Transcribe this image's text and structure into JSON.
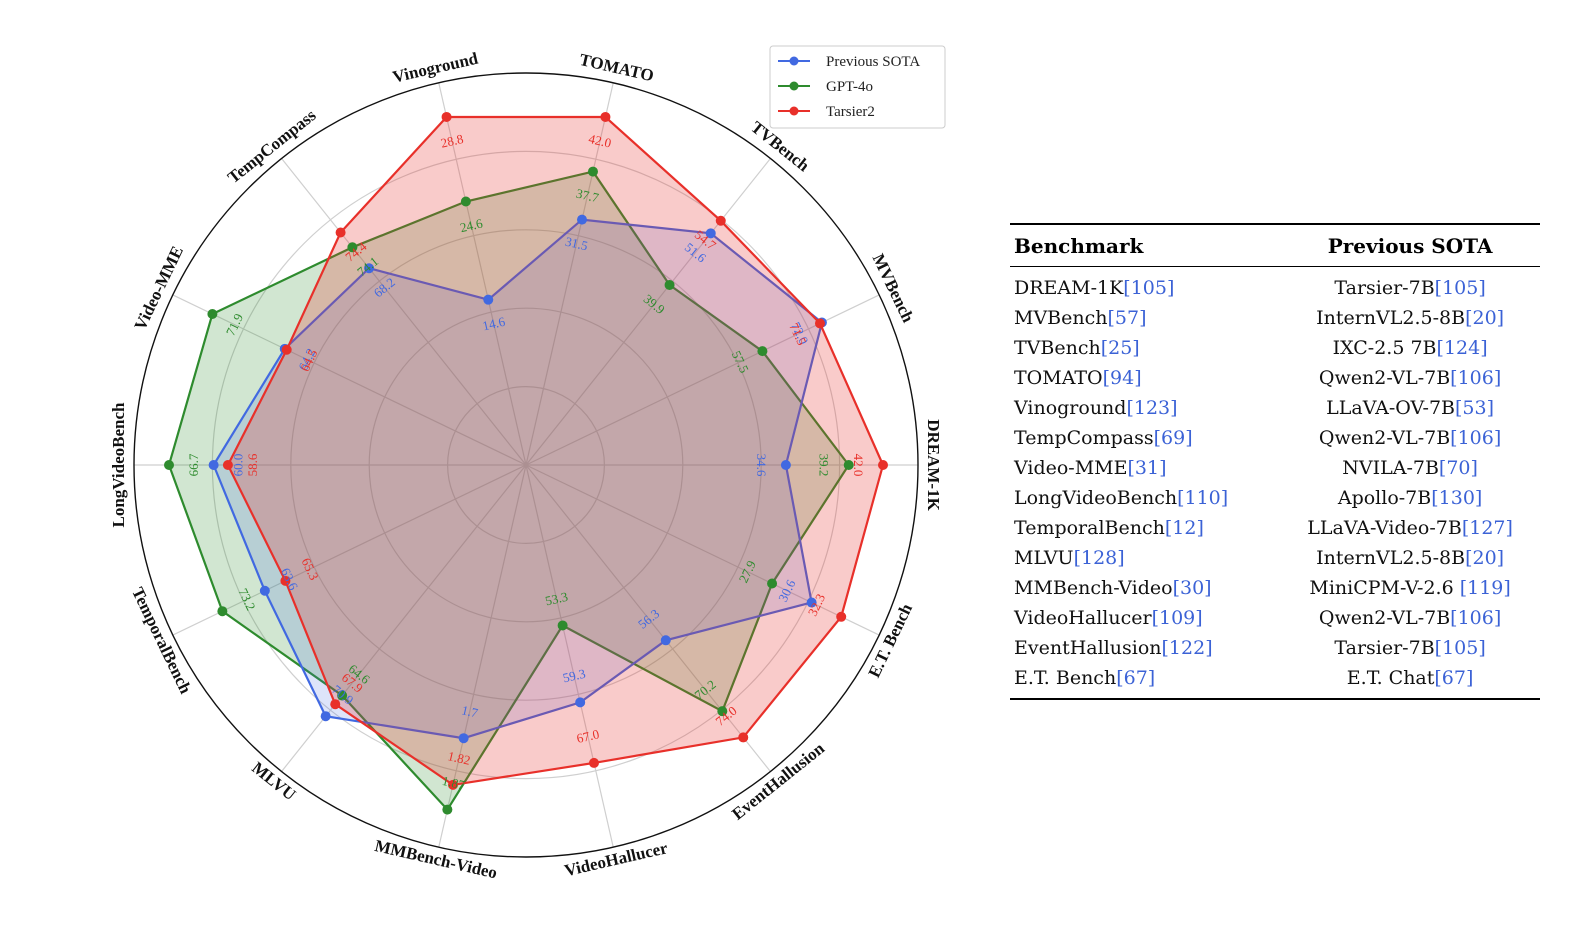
{
  "chart_data": {
    "type": "radar",
    "categories": [
      "DREAM-1K",
      "MVBench",
      "TVBench",
      "TOMATO",
      "Vinoground",
      "TempCompass",
      "Video-MME",
      "LongVideoBench",
      "TemporalBench",
      "MLVU",
      "MMBench-Video",
      "VideoHallucer",
      "EventHallusion",
      "E.T. Bench"
    ],
    "series": [
      {
        "name": "Previous SOTA",
        "color": "#4169e1",
        "values": [
          34.6,
          72.0,
          51.6,
          31.5,
          14.6,
          68.2,
          64.2,
          60.0,
          63.6,
          70.9,
          1.7,
          59.3,
          56.3,
          30.6
        ],
        "labels": [
          "34.6",
          "72.0",
          "51.6",
          "31.5",
          "14.6",
          "68.2",
          "64.2",
          "60.0",
          "63.6",
          "70.9",
          "1.7",
          "59.3",
          "56.3",
          "30.6"
        ]
      },
      {
        "name": "GPT-4o",
        "color": "#2e8b2e",
        "values": [
          39.2,
          57.5,
          39.9,
          37.7,
          24.6,
          74.1,
          71.9,
          66.7,
          73.2,
          64.6,
          1.87,
          53.3,
          70.2,
          27.9
        ],
        "labels": [
          "39.2",
          "57.5",
          "39.9",
          "37.7",
          "24.6",
          "74.1",
          "71.9",
          "66.7",
          "73.2",
          "64.6",
          "1.87",
          "53.3",
          "70.2",
          "27.9"
        ]
      },
      {
        "name": "Tarsier2",
        "color": "#e8302a",
        "values": [
          42.0,
          71.5,
          54.7,
          42.0,
          28.8,
          74.4,
          64.5,
          58.6,
          65.3,
          67.9,
          1.82,
          67.0,
          74.0,
          32.3
        ],
        "labels": [
          "42.0",
          "71.5",
          "54.7",
          "42.0",
          "28.8",
          "74.4",
          "64.5",
          "58.6",
          "65.3",
          "67.9",
          "1.82",
          "67.0",
          "74.0",
          "32.3"
        ]
      }
    ],
    "normalized_radius": {
      "Previous SOTA": [
        0.728,
        0.92,
        0.83,
        0.705,
        0.475,
        0.705,
        0.75,
        0.875,
        0.812,
        0.9,
        0.785,
        0.682,
        0.628,
        0.888
      ],
      "GPT-4o": [
        0.904,
        0.735,
        0.645,
        0.843,
        0.757,
        0.78,
        0.975,
        1.0,
        0.944,
        0.826,
        0.99,
        0.461,
        0.882,
        0.765
      ],
      "Tarsier2": [
        1.0,
        0.914,
        0.875,
        1.0,
        1.0,
        0.833,
        0.744,
        0.835,
        0.748,
        0.857,
        0.919,
        0.856,
        0.976,
        0.98
      ]
    },
    "legend": {
      "position": "top-right"
    },
    "grid": true
  },
  "table": {
    "headers": [
      "Benchmark",
      "Previous SOTA"
    ],
    "rows": [
      {
        "benchmark": "DREAM-1K",
        "benchmark_ref": "[105]",
        "sota": "Tarsier-7B",
        "sota_ref": "[105]"
      },
      {
        "benchmark": "MVBench",
        "benchmark_ref": "[57]",
        "sota": "InternVL2.5-8B",
        "sota_ref": "[20]"
      },
      {
        "benchmark": "TVBench",
        "benchmark_ref": "[25]",
        "sota": "IXC-2.5 7B",
        "sota_ref": "[124]"
      },
      {
        "benchmark": "TOMATO",
        "benchmark_ref": "[94]",
        "sota": "Qwen2-VL-7B",
        "sota_ref": "[106]"
      },
      {
        "benchmark": "Vinoground",
        "benchmark_ref": "[123]",
        "sota": "LLaVA-OV-7B",
        "sota_ref": "[53]"
      },
      {
        "benchmark": "TempCompass",
        "benchmark_ref": "[69]",
        "sota": "Qwen2-VL-7B",
        "sota_ref": "[106]"
      },
      {
        "benchmark": "Video-MME",
        "benchmark_ref": "[31]",
        "sota": "NVILA-7B",
        "sota_ref": "[70]"
      },
      {
        "benchmark": "LongVideoBench",
        "benchmark_ref": "[110]",
        "sota": "Apollo-7B",
        "sota_ref": "[130]"
      },
      {
        "benchmark": "TemporalBench",
        "benchmark_ref": "[12]",
        "sota": "LLaVA-Video-7B",
        "sota_ref": "[127]"
      },
      {
        "benchmark": "MLVU",
        "benchmark_ref": "[128]",
        "sota": "InternVL2.5-8B",
        "sota_ref": "[20]"
      },
      {
        "benchmark": "MMBench-Video",
        "benchmark_ref": "[30]",
        "sota": "MiniCPM-V-2.6 ",
        "sota_ref": "[119]"
      },
      {
        "benchmark": "VideoHallucer",
        "benchmark_ref": "[109]",
        "sota": "Qwen2-VL-7B",
        "sota_ref": "[106]"
      },
      {
        "benchmark": "EventHallusion",
        "benchmark_ref": "[122]",
        "sota": "Tarsier-7B",
        "sota_ref": "[105]"
      },
      {
        "benchmark": "E.T. Bench",
        "benchmark_ref": "[67]",
        "sota": "E.T. Chat",
        "sota_ref": "[67]"
      }
    ]
  }
}
